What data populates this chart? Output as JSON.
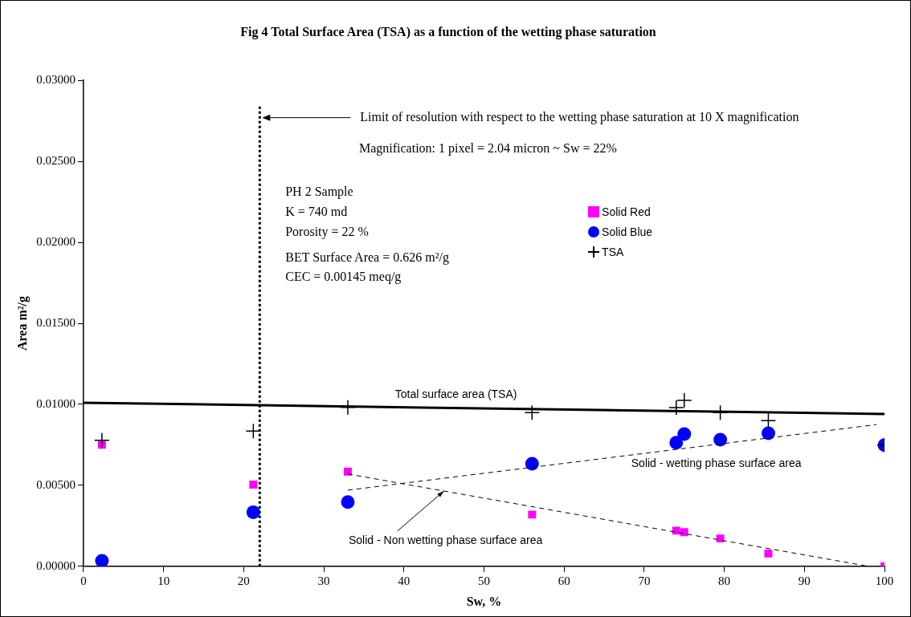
{
  "chart_data": {
    "type": "scatter",
    "title": "Fig 4 Total Surface Area (TSA) as a function of the wetting phase saturation",
    "xlabel": "Sw, %",
    "ylabel": "Area m²/g",
    "x": [
      2.3,
      21.2,
      33,
      56,
      74,
      75,
      79.5,
      85.5,
      100
    ],
    "series": [
      {
        "name": "Solid Red",
        "type": "scatter",
        "marker": "square",
        "color": "#ff00ff",
        "values": [
          0.0075,
          0.00504,
          0.00585,
          0.00319,
          0.0022,
          0.00211,
          0.00172,
          0.00079,
          0
        ]
      },
      {
        "name": "Solid Blue",
        "type": "scatter",
        "marker": "circle",
        "color": "#0000ff",
        "values": [
          0.00034,
          0.00334,
          0.00396,
          0.00633,
          0.00763,
          0.00816,
          0.00782,
          0.00821,
          0.00748
        ]
      },
      {
        "name": "TSA",
        "type": "scatter",
        "marker": "cross",
        "color": "#000000",
        "values": [
          0.00778,
          0.00835,
          0.00981,
          0.00949,
          0.0098,
          0.01025,
          0.00949,
          0.00899,
          0.00748
        ]
      },
      {
        "type": "line",
        "color": "#000000",
        "line_style": "solid",
        "x": [
          0,
          100
        ],
        "values": [
          0.0101,
          0.0094
        ]
      },
      {
        "type": "line",
        "color": "#000000",
        "line_style": "dashed",
        "x": [
          33,
          99
        ],
        "values": [
          0.0047,
          0.00875
        ]
      },
      {
        "type": "line",
        "color": "#000000",
        "line_style": "dashed",
        "x": [
          33,
          98
        ],
        "values": [
          0.0057,
          0
        ]
      }
    ],
    "xlim": [
      0,
      100
    ],
    "xticks": [
      0,
      10,
      20,
      30,
      40,
      50,
      60,
      70,
      80,
      90,
      100
    ],
    "ylim": [
      0,
      0.03
    ],
    "yticks": [
      {
        "value": 0,
        "label": "0.00000"
      },
      {
        "value": 0.005,
        "label": "0.00500"
      },
      {
        "value": 0.01,
        "label": "0.01000"
      },
      {
        "value": 0.015,
        "label": "0.01500"
      },
      {
        "value": 0.02,
        "label": "0.02000"
      },
      {
        "value": 0.025,
        "label": "0.02500"
      },
      {
        "value": 0.03,
        "label": "0.03000"
      }
    ],
    "ref_lines": [
      {
        "axis": "x",
        "value": 22,
        "color": "#000000",
        "line_style": "dotted"
      }
    ],
    "annotations": [
      {
        "text": "Limit of resolution with respect to the wetting phase saturation at 10 X magnification",
        "x": 22,
        "y": 0.0277
      },
      "Magnification: 1 pixel = 2.04 micron ~ Sw = 22%",
      "PH 2 Sample",
      "K = 740 md",
      "Porosity = 22 %",
      "BET Surface Area = 0.626 m²/g",
      "CEC = 0.00145 meq/g",
      {
        "text": "Total surface area (TSA)",
        "x": 46.5,
        "y": 0.00977
      },
      "Solid - wetting phase surface area",
      {
        "text": "Solid - Non wetting phase surface area",
        "x": 45,
        "y": 0.00465
      }
    ],
    "grid": false,
    "legend": "right"
  }
}
